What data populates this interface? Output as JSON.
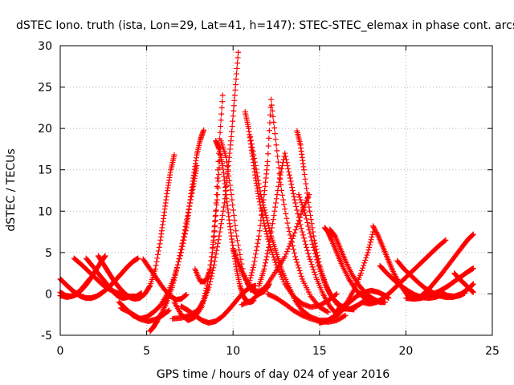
{
  "chart_data": {
    "type": "scatter",
    "title": "dSTEC Iono. truth (ista, Lon=29, Lat=41, h=147): STEC-STEC_elemax in phase cont. arcs",
    "xlabel": "GPS time / hours of day 024 of year 2016",
    "ylabel": "dSTEC  / TECUs",
    "xlim": [
      0,
      25
    ],
    "ylim": [
      -5,
      30
    ],
    "x_ticks": [
      0,
      5,
      10,
      15,
      20,
      25
    ],
    "y_ticks": [
      -5,
      0,
      5,
      10,
      15,
      20,
      25,
      30
    ],
    "x_tick_labels": [
      "0",
      "5",
      "10",
      "15",
      "20",
      "25"
    ],
    "y_tick_labels": [
      "-5",
      "0",
      "5",
      "10",
      "15",
      "20",
      "25",
      "30"
    ],
    "grid": true,
    "marker": "+",
    "color": "#ff0000",
    "series": [
      {
        "x": [
          0.0,
          0.3,
          0.6,
          0.9,
          1.2,
          1.5,
          1.8,
          2.1,
          2.4,
          2.7,
          3.0,
          3.3,
          3.6,
          3.9,
          4.2,
          4.5
        ],
        "y": [
          1.8,
          1.2,
          0.6,
          0.1,
          -0.3,
          -0.5,
          -0.5,
          -0.3,
          0.1,
          0.6,
          1.2,
          1.9,
          2.6,
          3.3,
          3.9,
          4.3
        ]
      },
      {
        "x": [
          0.0,
          0.3,
          0.6,
          0.9,
          1.2,
          1.5,
          1.8,
          2.1,
          2.4,
          2.6
        ],
        "y": [
          0.2,
          -0.2,
          -0.3,
          -0.1,
          0.4,
          1.1,
          2.0,
          3.0,
          4.0,
          4.6
        ]
      },
      {
        "x": [
          0.0,
          0.4,
          0.8,
          1.1,
          1.4,
          1.7
        ],
        "y": [
          -0.2,
          -0.4,
          -0.2,
          0.3,
          1.0,
          1.8
        ]
      },
      {
        "x": [
          0.8,
          1.2,
          1.6,
          2.0,
          2.4,
          2.8,
          3.2,
          3.6,
          4.0,
          4.4,
          4.7
        ],
        "y": [
          4.3,
          3.6,
          2.8,
          2.0,
          1.2,
          0.6,
          0.2,
          -0.1,
          -0.3,
          -0.3,
          0.1
        ]
      },
      {
        "x": [
          1.5,
          1.9,
          2.3,
          2.7,
          3.0,
          3.3,
          3.6,
          3.9
        ],
        "y": [
          4.3,
          3.3,
          2.2,
          1.2,
          0.4,
          -0.2,
          -0.5,
          -0.4
        ]
      },
      {
        "x": [
          2.2,
          2.5,
          2.8,
          3.1,
          3.4,
          3.7,
          4.0,
          4.3,
          4.6,
          4.9,
          5.2,
          5.5,
          5.8,
          6.0,
          6.2,
          6.4,
          6.6
        ],
        "y": [
          4.6,
          3.6,
          2.6,
          1.6,
          0.8,
          0.1,
          -0.4,
          -0.6,
          -0.5,
          0.0,
          1.0,
          3.0,
          6.5,
          9.5,
          12.5,
          15.0,
          16.8
        ]
      },
      {
        "x": [
          3.4,
          3.8,
          4.2,
          4.6,
          5.0,
          5.4,
          5.8,
          6.2,
          6.6,
          7.0,
          7.3,
          7.5,
          7.7,
          7.9,
          8.1,
          8.3
        ],
        "y": [
          -1.0,
          -1.8,
          -2.6,
          -3.0,
          -2.8,
          -2.2,
          -1.4,
          0.0,
          2.0,
          5.0,
          8.0,
          11.0,
          14.0,
          16.8,
          18.6,
          19.8
        ]
      },
      {
        "x": [
          5.2,
          5.4,
          5.6,
          5.9,
          6.2,
          6.5,
          6.8,
          7.1,
          7.4,
          7.7,
          7.9
        ],
        "y": [
          -4.5,
          -4.0,
          -3.3,
          -2.2,
          -0.8,
          1.0,
          3.5,
          6.5,
          9.8,
          13.0,
          15.5
        ]
      },
      {
        "x": [
          6.6,
          7.0,
          7.4,
          7.8,
          8.2,
          8.5,
          8.8,
          9.0,
          9.2,
          9.4
        ],
        "y": [
          -1.0,
          -2.5,
          -3.2,
          -2.8,
          -1.5,
          1.0,
          5.0,
          10.0,
          18.0,
          24.0
        ]
      },
      {
        "x": [
          6.5,
          7.0,
          7.5,
          8.0,
          8.3,
          8.6,
          8.9,
          9.2,
          9.5,
          9.7,
          9.9,
          10.1,
          10.3
        ],
        "y": [
          -3.0,
          -2.9,
          -2.6,
          -1.9,
          -0.8,
          0.8,
          3.5,
          7.0,
          11.0,
          15.0,
          19.0,
          24.0,
          29.2
        ]
      },
      {
        "x": [
          7.0,
          7.4,
          7.8,
          8.2,
          8.6,
          9.0,
          9.4,
          9.8,
          10.2,
          10.6,
          11.0,
          11.3
        ],
        "y": [
          -1.5,
          -2.0,
          -2.6,
          -3.2,
          -3.5,
          -3.3,
          -2.7,
          -1.8,
          -0.8,
          0.2,
          0.8,
          1.0
        ]
      },
      {
        "x": [
          3.5,
          3.9,
          4.3,
          4.7,
          5.1,
          5.5,
          5.9,
          6.3
        ],
        "y": [
          -1.7,
          -2.1,
          -2.6,
          -3.1,
          -3.3,
          -3.1,
          -2.6,
          -2.0
        ]
      },
      {
        "x": [
          4.8,
          5.2,
          5.6,
          6.0,
          6.4,
          6.7,
          7.0,
          7.3
        ],
        "y": [
          4.2,
          3.0,
          1.8,
          0.6,
          -0.3,
          -0.7,
          -0.6,
          -0.1
        ]
      },
      {
        "x": [
          7.8,
          8.1,
          8.4,
          8.7,
          8.9,
          9.1,
          9.3,
          9.6,
          9.9,
          10.2,
          10.6,
          11.0,
          11.5,
          12.0
        ],
        "y": [
          3.0,
          1.5,
          1.5,
          3.0,
          7.0,
          12.0,
          18.5,
          16.5,
          12.0,
          7.0,
          2.5,
          0.5,
          0.3,
          0.8
        ]
      },
      {
        "x": [
          9.0,
          9.2,
          9.4,
          9.6,
          9.8,
          10.0,
          10.2,
          10.4,
          10.6,
          10.8,
          11.0,
          11.2
        ],
        "y": [
          18.5,
          17.5,
          15.5,
          12.0,
          8.5,
          5.5,
          3.0,
          1.0,
          -0.3,
          -0.9,
          -1.0,
          -0.8
        ]
      },
      {
        "x": [
          10.7,
          10.9,
          11.1,
          11.3,
          11.5,
          11.8,
          12.1,
          12.5,
          13.0,
          13.5,
          14.0,
          14.5,
          15.0,
          15.5,
          16.0
        ],
        "y": [
          22.0,
          20.0,
          17.0,
          14.0,
          11.5,
          8.5,
          6.0,
          3.5,
          1.2,
          -0.3,
          -1.2,
          -1.6,
          -1.4,
          -0.8,
          0.0
        ]
      },
      {
        "x": [
          11.0,
          11.3,
          11.6,
          11.9,
          12.2,
          12.5,
          12.8,
          13.2,
          13.6,
          14.0,
          14.5,
          15.0,
          15.5,
          16.0,
          16.3
        ],
        "y": [
          19.0,
          15.5,
          12.0,
          9.5,
          7.0,
          5.0,
          3.0,
          1.0,
          -0.8,
          -2.0,
          -2.8,
          -3.2,
          -3.2,
          -2.6,
          -2.0
        ]
      },
      {
        "x": [
          10.0,
          10.3,
          10.6,
          10.9,
          11.2,
          11.5,
          11.8,
          12.1
        ],
        "y": [
          5.5,
          3.8,
          2.3,
          1.0,
          0.3,
          0.0,
          0.3,
          1.2
        ]
      },
      {
        "x": [
          10.9,
          11.2,
          11.5,
          11.8,
          12.0,
          12.2,
          12.5,
          12.8,
          13.2,
          13.6,
          14.0,
          14.5,
          15.0,
          15.5
        ],
        "y": [
          1.0,
          3.5,
          7.0,
          12.0,
          16.0,
          23.5,
          18.0,
          12.5,
          8.0,
          4.5,
          1.8,
          -0.3,
          -1.6,
          -2.2
        ]
      },
      {
        "x": [
          11.5,
          11.8,
          12.1,
          12.4,
          12.7,
          13.0,
          13.3,
          13.6,
          14.0,
          14.4,
          14.8,
          15.2,
          15.6,
          16.0
        ],
        "y": [
          1.0,
          3.0,
          6.0,
          10.0,
          14.0,
          17.0,
          14.0,
          11.0,
          7.5,
          4.5,
          2.0,
          0.0,
          -1.5,
          -2.5
        ]
      },
      {
        "x": [
          13.7,
          13.9,
          14.1,
          14.4,
          14.7,
          15.0,
          15.3,
          15.6,
          16.0,
          16.4,
          16.8,
          17.2,
          17.5
        ],
        "y": [
          19.7,
          18.0,
          15.0,
          10.5,
          6.5,
          3.5,
          1.5,
          0.0,
          -1.2,
          -1.8,
          -1.8,
          -1.4,
          -1.0
        ]
      },
      {
        "x": [
          13.8,
          14.2,
          14.6,
          15.0,
          15.4,
          15.8,
          16.2,
          16.6,
          17.0
        ],
        "y": [
          12.0,
          9.5,
          6.0,
          3.0,
          0.8,
          -0.6,
          -1.4,
          -1.8,
          -1.9
        ]
      },
      {
        "x": [
          10.5,
          11.0,
          11.5,
          12.0,
          12.5,
          13.0,
          13.5,
          14.0,
          14.4
        ],
        "y": [
          -1.3,
          -0.9,
          0.0,
          1.2,
          2.8,
          4.5,
          7.0,
          10.0,
          12.0
        ]
      },
      {
        "x": [
          12.0,
          12.5,
          13.0,
          13.5,
          14.0,
          14.5,
          15.0,
          15.5,
          16.0,
          16.5
        ],
        "y": [
          0.0,
          -0.5,
          -1.2,
          -2.0,
          -2.6,
          -3.0,
          -3.3,
          -3.4,
          -3.2,
          -2.6
        ]
      },
      {
        "x": [
          15.3,
          15.5,
          15.7,
          16.0,
          16.3,
          16.7,
          17.1,
          17.5,
          17.9,
          18.3
        ],
        "y": [
          8.0,
          7.5,
          6.5,
          5.0,
          3.5,
          1.8,
          0.5,
          -0.3,
          -0.8,
          -1.0
        ]
      },
      {
        "x": [
          15.6,
          15.9,
          16.2,
          16.5,
          16.9,
          17.3,
          17.7,
          18.1,
          18.5,
          18.8
        ],
        "y": [
          7.8,
          7.0,
          5.5,
          4.0,
          2.3,
          1.0,
          0.0,
          -0.6,
          -1.0,
          -1.0
        ]
      },
      {
        "x": [
          15.0,
          15.4,
          15.8,
          16.2,
          16.6,
          17.0,
          17.4,
          17.8,
          18.1
        ],
        "y": [
          -3.5,
          -3.3,
          -2.8,
          -2.0,
          -1.0,
          0.5,
          2.5,
          5.0,
          7.5
        ]
      },
      {
        "x": [
          16.0,
          16.4,
          16.8,
          17.2,
          17.6,
          18.0,
          18.4,
          18.8,
          19.0
        ],
        "y": [
          -2.0,
          -1.5,
          -0.9,
          -0.2,
          0.2,
          0.4,
          0.2,
          -0.2,
          -0.5
        ]
      },
      {
        "x": [
          18.1,
          18.4,
          18.7,
          19.0,
          19.3,
          19.7,
          20.1,
          20.5,
          20.9,
          21.3
        ],
        "y": [
          8.2,
          7.0,
          5.5,
          4.0,
          2.5,
          1.0,
          -0.2,
          -0.6,
          -0.5,
          -0.2
        ]
      },
      {
        "x": [
          17.5,
          17.9,
          18.3,
          18.7,
          19.1,
          19.5,
          19.9,
          20.3,
          20.7,
          21.1,
          21.5,
          21.9,
          22.3
        ],
        "y": [
          -1.0,
          -1.2,
          -1.0,
          -0.5,
          0.2,
          1.0,
          1.8,
          2.6,
          3.4,
          4.2,
          5.0,
          5.8,
          6.5
        ]
      },
      {
        "x": [
          18.5,
          18.9,
          19.3,
          19.7,
          20.1,
          20.5,
          20.9,
          21.3,
          21.7,
          22.1
        ],
        "y": [
          3.4,
          2.5,
          1.7,
          1.0,
          0.4,
          -0.1,
          -0.4,
          -0.5,
          -0.4,
          -0.1
        ]
      },
      {
        "x": [
          19.5,
          19.9,
          20.3,
          20.7,
          21.1,
          21.5,
          21.9,
          22.3,
          22.7,
          23.1,
          23.4
        ],
        "y": [
          4.0,
          3.0,
          2.2,
          1.4,
          0.7,
          0.2,
          -0.2,
          -0.4,
          -0.4,
          -0.2,
          0.1
        ]
      },
      {
        "x": [
          20.0,
          20.4,
          20.8,
          21.2,
          21.6,
          22.0,
          22.4,
          22.8,
          23.2,
          23.6,
          23.9
        ],
        "y": [
          -0.5,
          -0.6,
          -0.5,
          -0.3,
          0.0,
          0.4,
          0.9,
          1.5,
          2.1,
          2.7,
          3.1
        ]
      },
      {
        "x": [
          20.9,
          21.3,
          21.7,
          22.1,
          22.5,
          22.9,
          23.3,
          23.6,
          23.9
        ],
        "y": [
          -0.2,
          0.5,
          1.5,
          2.5,
          3.6,
          4.7,
          5.8,
          6.6,
          7.2
        ]
      },
      {
        "x": [
          22.8,
          23.1,
          23.4,
          23.7,
          23.9
        ],
        "y": [
          2.5,
          1.8,
          1.2,
          0.6,
          0.2
        ]
      },
      {
        "x": [
          22.0,
          22.4,
          22.8,
          23.2,
          23.6,
          23.9
        ],
        "y": [
          0.2,
          -0.2,
          -0.3,
          0.0,
          0.6,
          1.2
        ]
      }
    ]
  }
}
